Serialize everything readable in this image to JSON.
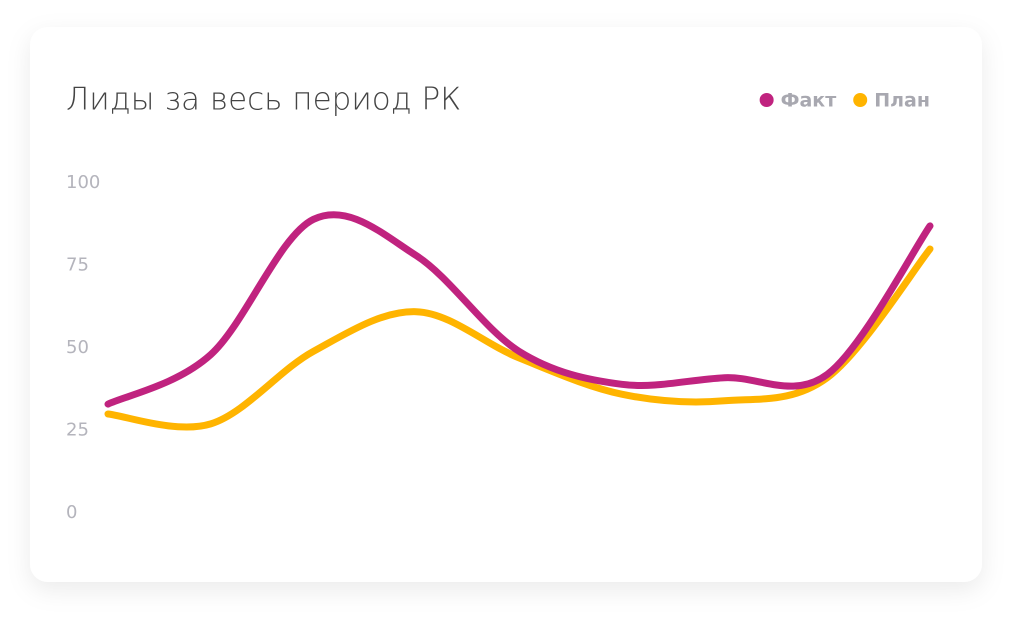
{
  "chart_data": {
    "type": "line",
    "title": "Лиды за весь период РК",
    "categories": [
      null,
      null,
      null,
      null,
      null,
      null,
      null,
      null,
      null
    ],
    "series": [
      {
        "name": "Факт",
        "color": "#c0237f",
        "values": [
          33,
          48,
          89,
          78,
          49,
          39,
          41,
          42,
          87
        ]
      },
      {
        "name": "План",
        "color": "#ffb400",
        "values": [
          30,
          27,
          49,
          61,
          47,
          36,
          34,
          41,
          80
        ]
      }
    ],
    "ylim": [
      0,
      100
    ],
    "yticks": [
      0,
      25,
      50,
      75,
      100
    ],
    "grid": false,
    "legend": "top-right",
    "smooth": true
  }
}
